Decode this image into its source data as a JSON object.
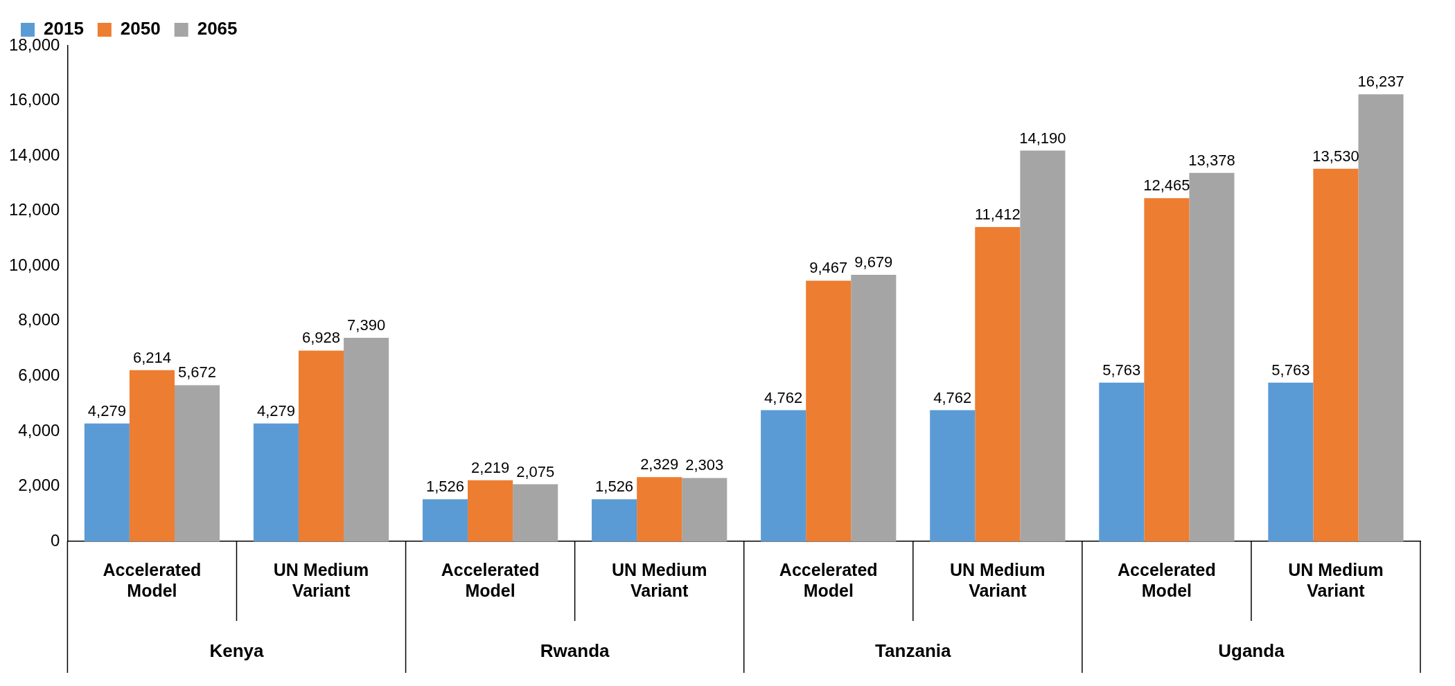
{
  "chart_data": {
    "type": "bar",
    "categories": [
      "Accelerated Model",
      "UN Medium Variant",
      "Accelerated Model",
      "UN Medium Variant",
      "Accelerated Model",
      "UN Medium Variant",
      "Accelerated Model",
      "UN Medium Variant"
    ],
    "series": [
      {
        "name": "2015",
        "color": "#5b9bd5",
        "values": [
          4279,
          4279,
          1526,
          1526,
          4762,
          4762,
          5763,
          5763
        ],
        "value_labels": [
          "4,279",
          "4,279",
          "1,526",
          "1,526",
          "4,762",
          "4,762",
          "5,763",
          "5,763"
        ]
      },
      {
        "name": "2050",
        "color": "#ed7d31",
        "values": [
          6214,
          6928,
          2219,
          2329,
          9467,
          11412,
          12465,
          13530
        ],
        "value_labels": [
          "6,214",
          "6,928",
          "2,219",
          "2,329",
          "9,467",
          "11,412",
          "12,465",
          "13,530"
        ]
      },
      {
        "name": "2065",
        "color": "#a5a5a5",
        "values": [
          5672,
          7390,
          2075,
          2303,
          9679,
          14190,
          13378,
          16237
        ],
        "value_labels": [
          "5,672",
          "7,390",
          "2,075",
          "2,303",
          "9,679",
          "14,190",
          "13,378",
          "16,237"
        ]
      }
    ],
    "ylim": [
      0,
      18000
    ],
    "yticks": [
      {
        "value": 0,
        "label": "0"
      },
      {
        "value": 2000,
        "label": "2,000"
      },
      {
        "value": 4000,
        "label": "4,000"
      },
      {
        "value": 6000,
        "label": "6,000"
      },
      {
        "value": 8000,
        "label": "8,000"
      },
      {
        "value": 10000,
        "label": "10,000"
      },
      {
        "value": 12000,
        "label": "12,000"
      },
      {
        "value": 14000,
        "label": "14,000"
      },
      {
        "value": 16000,
        "label": "16,000"
      },
      {
        "value": 18000,
        "label": "18,000"
      }
    ],
    "legend": "top left",
    "grid": false,
    "annotations": [
      "Kenya",
      "Rwanda",
      "Tanzania",
      "Uganda"
    ]
  }
}
